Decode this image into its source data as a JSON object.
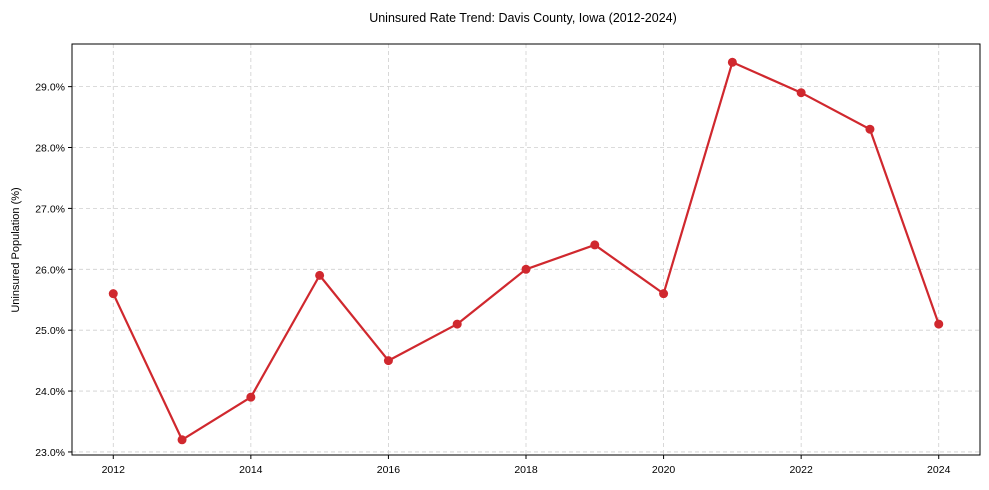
{
  "chart_data": {
    "type": "line",
    "title": "Uninsured Rate Trend: Davis County, Iowa (2012-2024)",
    "xlabel": "",
    "ylabel": "Uninsured Population (%)",
    "x": [
      2012,
      2013,
      2014,
      2015,
      2016,
      2017,
      2018,
      2019,
      2020,
      2021,
      2022,
      2023,
      2024
    ],
    "series": [
      {
        "name": "Uninsured Rate",
        "values": [
          25.6,
          23.2,
          23.9,
          25.9,
          24.5,
          25.1,
          26.0,
          26.4,
          25.6,
          29.4,
          28.9,
          28.3,
          25.1
        ],
        "color": "#d0282e",
        "marker": "circle"
      }
    ],
    "x_ticks": [
      "2012",
      "2014",
      "2016",
      "2018",
      "2020",
      "2022",
      "2024"
    ],
    "y_ticks": [
      "23.0%",
      "24.0%",
      "25.0%",
      "26.0%",
      "27.0%",
      "28.0%",
      "29.0%"
    ],
    "xlim": [
      2011.4,
      2024.6
    ],
    "ylim": [
      22.95,
      29.7
    ],
    "grid": true,
    "legend": null
  }
}
